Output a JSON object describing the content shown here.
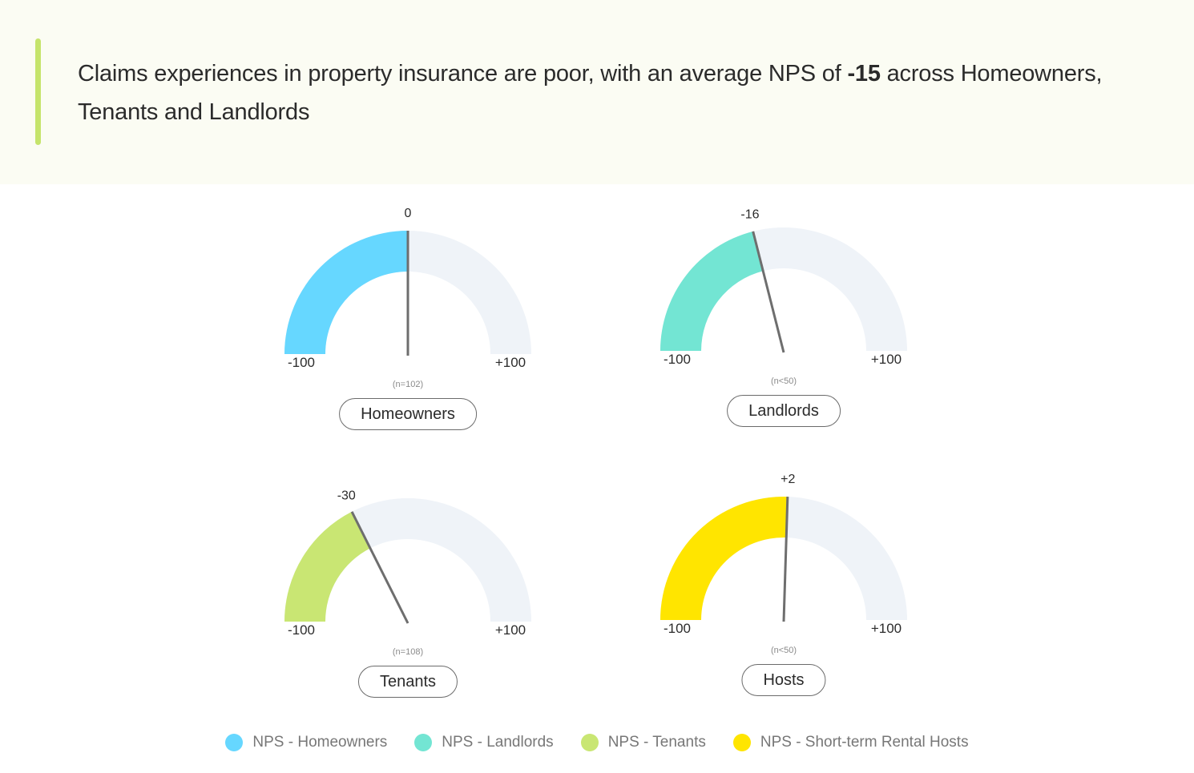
{
  "header": {
    "title_pre": "Claims experiences in property insurance are poor, with an average NPS of ",
    "title_bold": "-15",
    "title_post": " across Homeowners, Tenants and Landlords"
  },
  "chart_data": {
    "type": "gauge",
    "range": [
      -100,
      100
    ],
    "min_label": "-100",
    "max_label": "+100",
    "track_color": "#eff3f8",
    "needle_color": "#6e6e6e",
    "gauges": [
      {
        "name": "Homeowners",
        "value": 0,
        "value_label": "0",
        "n_label": "(n=102)",
        "color": "#66d7ff"
      },
      {
        "name": "Landlords",
        "value": -16,
        "value_label": "-16",
        "n_label": "(n<50)",
        "color": "#73e5d3"
      },
      {
        "name": "Tenants",
        "value": -30,
        "value_label": "-30",
        "n_label": "(n=108)",
        "color": "#c9e673"
      },
      {
        "name": "Hosts",
        "value": 2,
        "value_label": "+2",
        "n_label": "(n<50)",
        "color": "#ffe500"
      }
    ],
    "legend": [
      {
        "label": "NPS - Homeowners",
        "color": "#66d7ff"
      },
      {
        "label": "NPS - Landlords",
        "color": "#73e5d3"
      },
      {
        "label": "NPS - Tenants",
        "color": "#c9e673"
      },
      {
        "label": "NPS - Short-term Rental Hosts",
        "color": "#ffe500"
      }
    ],
    "legend_position": "bottom"
  }
}
